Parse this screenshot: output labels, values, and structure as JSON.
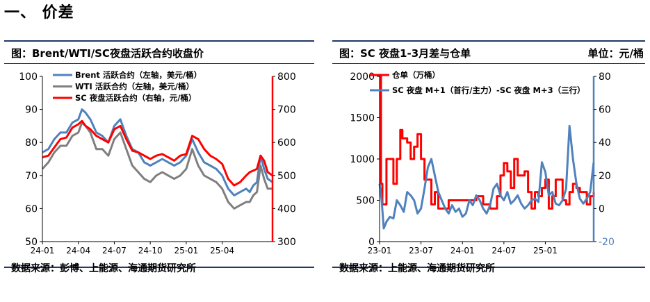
{
  "page": {
    "section_title": "一、 价差"
  },
  "left_panel": {
    "title": "图：Brent/WTI/SC夜盘活跃合约收盘价",
    "source": "数据来源：彭博、上能源、海通期货研究所"
  },
  "right_panel": {
    "title": "图：SC 夜盘1-3月差与仓单",
    "unit": "单位：元/桶",
    "source": "数据来源：上能源、海通期货研究所"
  },
  "colors": {
    "brent": "#4f81bd",
    "wti": "#7f7f7f",
    "sc": "#ff0000",
    "spread": "#4f81bd",
    "warrant": "#ff0000",
    "frame": "#1f3864"
  },
  "chart_data": [
    {
      "type": "line",
      "x_ticks": [
        "24-01",
        "24-04",
        "24-07",
        "24-10",
        "25-01",
        "25-04"
      ],
      "x_tick_positions": [
        0,
        3,
        6,
        9,
        12,
        15
      ],
      "xlim": [
        0,
        19.2
      ],
      "y_left": {
        "ticks": [
          50,
          60,
          70,
          80,
          90,
          100
        ],
        "lim": [
          50,
          100
        ]
      },
      "y_right": {
        "ticks": [
          300,
          400,
          500,
          600,
          700,
          800
        ],
        "lim": [
          300,
          800
        ]
      },
      "series": [
        {
          "name": "Brent 活跃合约（左轴，美元/桶）",
          "axis": "left",
          "color_key": "brent",
          "x": [
            0,
            0.5,
            1,
            1.5,
            2,
            2.5,
            3,
            3.3,
            3.6,
            4,
            4.5,
            5,
            5.5,
            6,
            6.5,
            7,
            7.5,
            8,
            8.5,
            9,
            9.5,
            10,
            10.5,
            11,
            11.5,
            12,
            12.5,
            13,
            13.5,
            14,
            14.5,
            15,
            15.5,
            16,
            16.5,
            17,
            17.3,
            17.6,
            17.9,
            18.2,
            18.5,
            18.8,
            19.2
          ],
          "values": [
            77,
            78,
            81,
            83,
            83,
            86,
            87,
            90,
            89,
            87,
            83,
            82,
            80,
            85,
            87,
            82,
            78,
            77,
            74,
            73,
            74,
            75,
            74,
            73,
            74,
            76,
            81,
            77,
            74,
            73,
            72,
            70,
            66,
            64,
            65,
            66,
            65,
            67,
            68,
            76,
            72,
            69,
            68
          ]
        },
        {
          "name": "WTI 活跃合约（左轴，美元/桶）",
          "axis": "left",
          "color_key": "wti",
          "x": [
            0,
            0.5,
            1,
            1.5,
            2,
            2.5,
            3,
            3.3,
            3.6,
            4,
            4.5,
            5,
            5.5,
            6,
            6.5,
            7,
            7.5,
            8,
            8.5,
            9,
            9.5,
            10,
            10.5,
            11,
            11.5,
            12,
            12.5,
            13,
            13.5,
            14,
            14.5,
            15,
            15.5,
            16,
            16.5,
            17,
            17.3,
            17.6,
            17.9,
            18.2,
            18.5,
            18.8,
            19.2
          ],
          "values": [
            72,
            74,
            77,
            79,
            79,
            82,
            83,
            86,
            85,
            83,
            78,
            78,
            76,
            81,
            83,
            78,
            73,
            71,
            69,
            68,
            70,
            71,
            70,
            69,
            70,
            72,
            78,
            73,
            70,
            69,
            68,
            66,
            62,
            60,
            61,
            62,
            62,
            64,
            65,
            73,
            69,
            66,
            66
          ]
        },
        {
          "name": "SC 夜盘活跃合约（右轴，元/桶）",
          "axis": "right",
          "color_key": "sc",
          "x": [
            0,
            0.5,
            1,
            1.5,
            2,
            2.5,
            3,
            3.3,
            3.6,
            4,
            4.5,
            5,
            5.5,
            6,
            6.5,
            7,
            7.5,
            8,
            8.5,
            9,
            9.5,
            10,
            10.5,
            11,
            11.5,
            12,
            12.5,
            13,
            13.5,
            14,
            14.5,
            15,
            15.5,
            16,
            16.5,
            17,
            17.3,
            17.6,
            17.9,
            18.2,
            18.5,
            18.8,
            19.2
          ],
          "values": [
            555,
            560,
            585,
            610,
            615,
            645,
            655,
            665,
            650,
            640,
            620,
            610,
            600,
            640,
            650,
            610,
            575,
            570,
            560,
            550,
            560,
            565,
            555,
            545,
            560,
            565,
            620,
            610,
            580,
            560,
            550,
            535,
            490,
            470,
            480,
            500,
            510,
            515,
            520,
            560,
            545,
            510,
            500
          ]
        }
      ]
    },
    {
      "type": "line",
      "x_ticks": [
        "23-01",
        "23-07",
        "24-01",
        "24-07",
        "25-01"
      ],
      "x_tick_positions": [
        0,
        6,
        12,
        18,
        24
      ],
      "xlim": [
        0,
        31
      ],
      "y_left": {
        "ticks": [
          0,
          500,
          1000,
          1500,
          2000
        ],
        "lim": [
          0,
          2000
        ]
      },
      "y_right": {
        "ticks": [
          -20,
          0,
          20,
          40,
          60,
          80
        ],
        "lim": [
          -20,
          80
        ]
      },
      "series": [
        {
          "name": "仓单（万桶）",
          "axis": "left",
          "color_key": "warrant",
          "step": true,
          "x": [
            0,
            0.2,
            0.4,
            1,
            1.5,
            2,
            2.5,
            3,
            3.3,
            4,
            4.5,
            5,
            5.5,
            6,
            6.5,
            7,
            7.5,
            8,
            8.5,
            9,
            9.5,
            10,
            10.5,
            11,
            11.5,
            12,
            13,
            13.5,
            14,
            15,
            16,
            17,
            17.5,
            18,
            18.5,
            19,
            19.5,
            20,
            20.5,
            21,
            21.5,
            22,
            22.5,
            23,
            23.5,
            24,
            24.5,
            25,
            25.5,
            26,
            26.5,
            27,
            27.5,
            28,
            28.5,
            29,
            29.5,
            30,
            30.5,
            31
          ],
          "values": [
            2000,
            700,
            450,
            1000,
            1000,
            700,
            1000,
            1350,
            1250,
            1200,
            1000,
            1150,
            1300,
            1000,
            750,
            750,
            450,
            600,
            400,
            400,
            400,
            500,
            500,
            500,
            500,
            500,
            500,
            500,
            550,
            450,
            400,
            550,
            800,
            950,
            850,
            650,
            1000,
            800,
            800,
            850,
            600,
            400,
            600,
            550,
            650,
            750,
            400,
            550,
            750,
            750,
            500,
            450,
            600,
            700,
            650,
            600,
            600,
            450,
            550,
            600
          ]
        },
        {
          "name": "SC 夜盘 M+1（首行/主力）-SC 夜盘 M+3（三行）",
          "axis": "right",
          "color_key": "spread",
          "x": [
            0,
            0.3,
            0.6,
            1,
            1.5,
            2,
            2.5,
            3,
            3.5,
            4,
            4.5,
            5,
            5.5,
            6,
            6.5,
            7,
            7.5,
            8,
            8.5,
            9,
            9.5,
            10,
            10.5,
            11,
            11.5,
            12,
            12.5,
            13,
            13.5,
            14,
            14.5,
            15,
            15.5,
            16,
            16.5,
            17,
            17.5,
            18,
            18.5,
            19,
            19.5,
            20,
            20.5,
            21,
            21.5,
            22,
            22.5,
            23,
            23.5,
            24,
            24.5,
            25,
            25.5,
            26,
            26.5,
            27,
            27.5,
            28,
            28.5,
            29,
            29.5,
            30,
            30.5,
            31
          ],
          "values": [
            15,
            5,
            -12,
            -8,
            -5,
            -6,
            5,
            2,
            -2,
            10,
            8,
            5,
            -3,
            0,
            12,
            25,
            30,
            20,
            10,
            5,
            0,
            -3,
            2,
            -2,
            0,
            -5,
            -3,
            5,
            2,
            8,
            5,
            0,
            -3,
            2,
            12,
            15,
            8,
            5,
            10,
            3,
            5,
            8,
            3,
            0,
            2,
            5,
            6,
            4,
            28,
            22,
            8,
            10,
            3,
            2,
            5,
            12,
            50,
            30,
            15,
            6,
            3,
            6,
            10,
            28
          ]
        }
      ]
    }
  ]
}
